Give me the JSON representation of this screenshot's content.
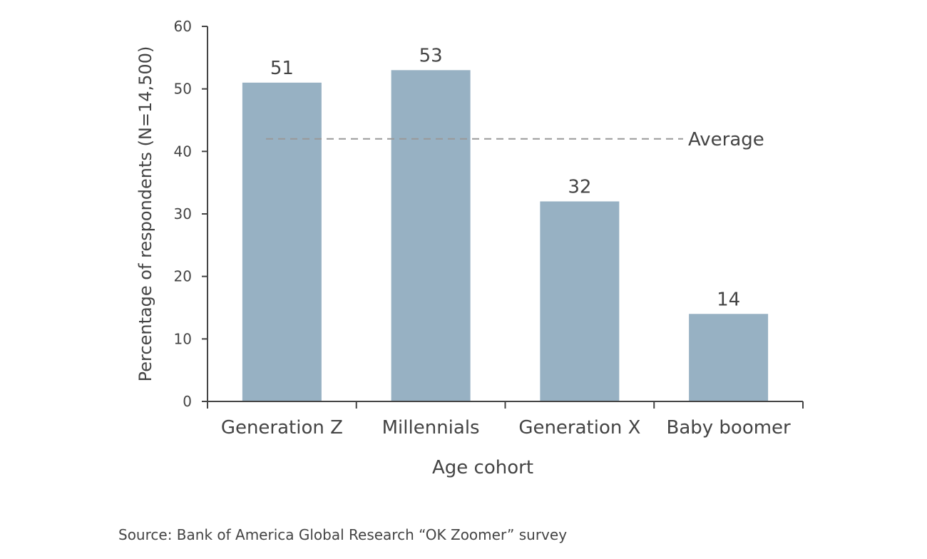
{
  "chart_data": {
    "type": "bar",
    "categories": [
      "Generation Z",
      "Millennials",
      "Generation X",
      "Baby boomer"
    ],
    "values": [
      51,
      53,
      32,
      14
    ],
    "data_labels": [
      "51",
      "53",
      "32",
      "14"
    ],
    "xlabel": "Age cohort",
    "ylabel": "Percentage of respondents (N=14,500)",
    "ylim": [
      0,
      60
    ],
    "yticks": [
      0,
      10,
      20,
      30,
      40,
      50,
      60
    ],
    "grid": false,
    "legend": "none",
    "reference_line": {
      "label": "Average",
      "value": 42,
      "style": "dashed"
    },
    "colors": {
      "bar": "#97b1c3",
      "axis": "#444444",
      "average_line": "#999999"
    }
  },
  "source": "Source: Bank of America Global Research “OK Zoomer” survey"
}
